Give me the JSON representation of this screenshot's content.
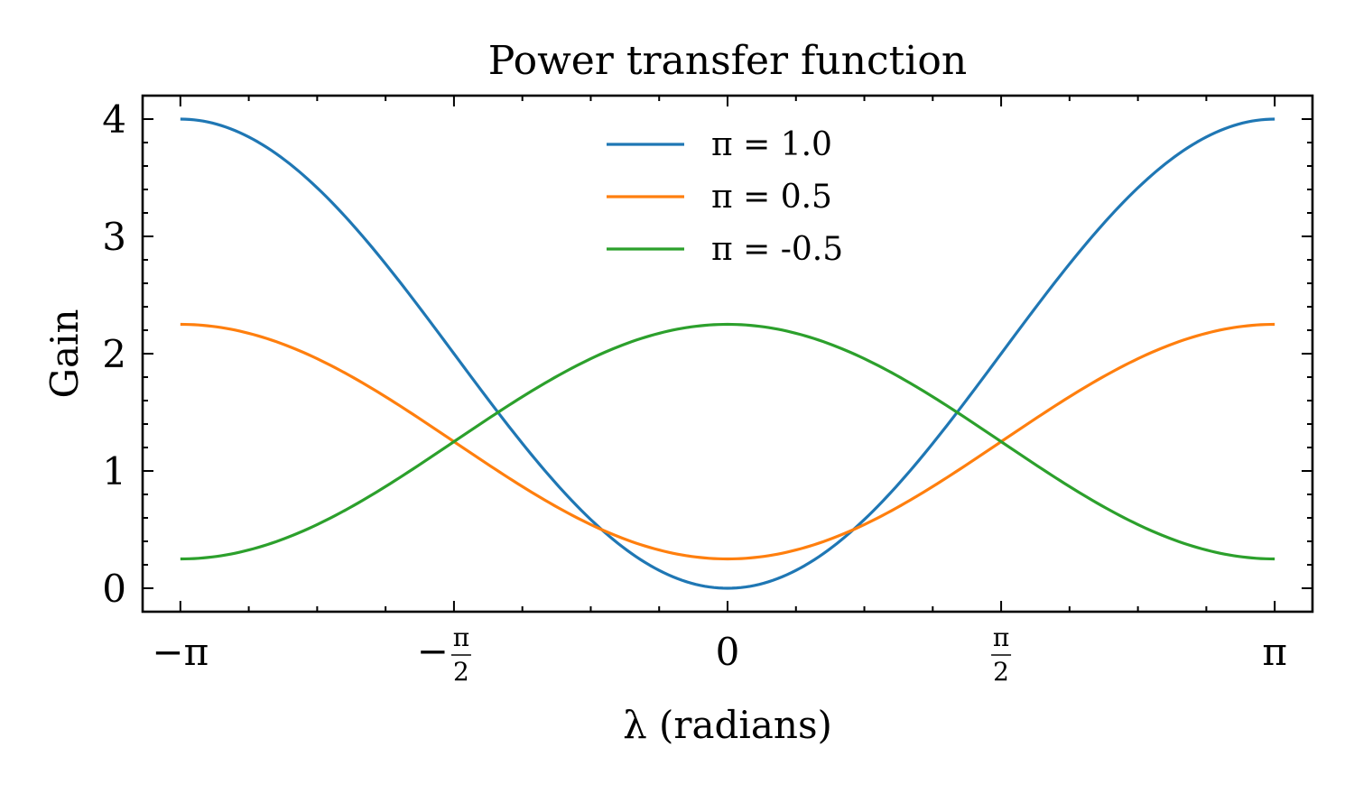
{
  "chart_data": {
    "type": "line",
    "title": "Power transfer function",
    "xlabel": "λ (radians)",
    "ylabel": "Gain",
    "xlim": [
      -3.3584,
      3.3584
    ],
    "ylim": [
      -0.2,
      4.2
    ],
    "x_ticks": [
      {
        "value": -3.14159,
        "label": "−π"
      },
      {
        "value": -1.570796,
        "label": "−",
        "frac_num": "π",
        "frac_den": "2"
      },
      {
        "value": 0,
        "label": "0"
      },
      {
        "value": 1.570796,
        "label": "",
        "frac_num": "π",
        "frac_den": "2"
      },
      {
        "value": 3.14159,
        "label": "π"
      }
    ],
    "x_minor_step": 0.392699,
    "y_ticks": [
      {
        "value": 0,
        "label": "0"
      },
      {
        "value": 1,
        "label": "1"
      },
      {
        "value": 2,
        "label": "2"
      },
      {
        "value": 3,
        "label": "3"
      },
      {
        "value": 4,
        "label": "4"
      }
    ],
    "y_minor_step": 0.2,
    "grid": false,
    "legend": "top-center",
    "x": [
      -3.1416,
      -2.7489,
      -2.3562,
      -1.9635,
      -1.5708,
      -1.1781,
      -0.7854,
      -0.3927,
      0,
      0.3927,
      0.7854,
      1.1781,
      1.5708,
      1.9635,
      2.3562,
      2.7489,
      3.1416
    ],
    "series": [
      {
        "name": "π = 1.0",
        "color": "#1f77b4",
        "values": [
          4.0,
          3.848,
          3.414,
          2.765,
          2.0,
          1.235,
          0.586,
          0.152,
          0.0,
          0.152,
          0.586,
          1.235,
          2.0,
          2.765,
          3.414,
          3.848,
          4.0
        ]
      },
      {
        "name": "π = 0.5",
        "color": "#ff7f0e",
        "values": [
          2.25,
          2.174,
          1.957,
          1.633,
          1.25,
          0.867,
          0.543,
          0.326,
          0.25,
          0.326,
          0.543,
          0.867,
          1.25,
          1.633,
          1.957,
          2.174,
          2.25
        ]
      },
      {
        "name": "π = -0.5",
        "color": "#2ca02c",
        "values": [
          0.25,
          0.326,
          0.543,
          0.867,
          1.25,
          1.633,
          1.957,
          2.174,
          2.25,
          2.174,
          1.957,
          1.633,
          1.25,
          0.867,
          0.543,
          0.326,
          0.25
        ]
      }
    ]
  }
}
